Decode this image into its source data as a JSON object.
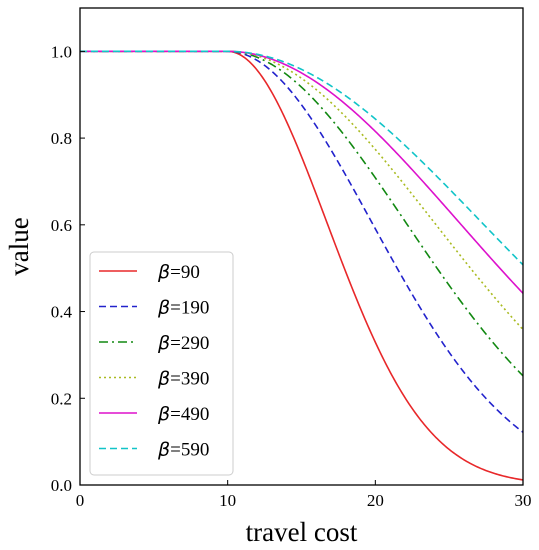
{
  "chart_data": {
    "type": "line",
    "title": "",
    "xlabel": "travel cost",
    "ylabel": "value",
    "xlim": [
      0,
      30
    ],
    "ylim": [
      0,
      1.1
    ],
    "xticks": [
      "0",
      "10",
      "20",
      "30"
    ],
    "yticks": [
      "0.0",
      "0.2",
      "0.4",
      "0.6",
      "0.8",
      "1.0"
    ],
    "grid": false,
    "legend_position": "lower-left",
    "threshold": 10,
    "series": [
      {
        "name": "β=90",
        "label_prefix": "β",
        "label_value": "=90",
        "beta": 90,
        "color": "#e8282a",
        "dash": "solid"
      },
      {
        "name": "β=190",
        "label_prefix": "β",
        "label_value": "=190",
        "beta": 190,
        "color": "#2222cc",
        "dash": "dashed"
      },
      {
        "name": "β=290",
        "label_prefix": "β",
        "label_value": "=290",
        "beta": 290,
        "color": "#118811",
        "dash": "dashdot"
      },
      {
        "name": "β=390",
        "label_prefix": "β",
        "label_value": "=390",
        "beta": 390,
        "color": "#aabb22",
        "dash": "dotted"
      },
      {
        "name": "β=490",
        "label_prefix": "β",
        "label_value": "=490",
        "beta": 490,
        "color": "#dd11cc",
        "dash": "solid"
      },
      {
        "name": "β=590",
        "label_prefix": "β",
        "label_value": "=590",
        "beta": 590,
        "color": "#11c4c8",
        "dash": "dashed"
      }
    ]
  }
}
